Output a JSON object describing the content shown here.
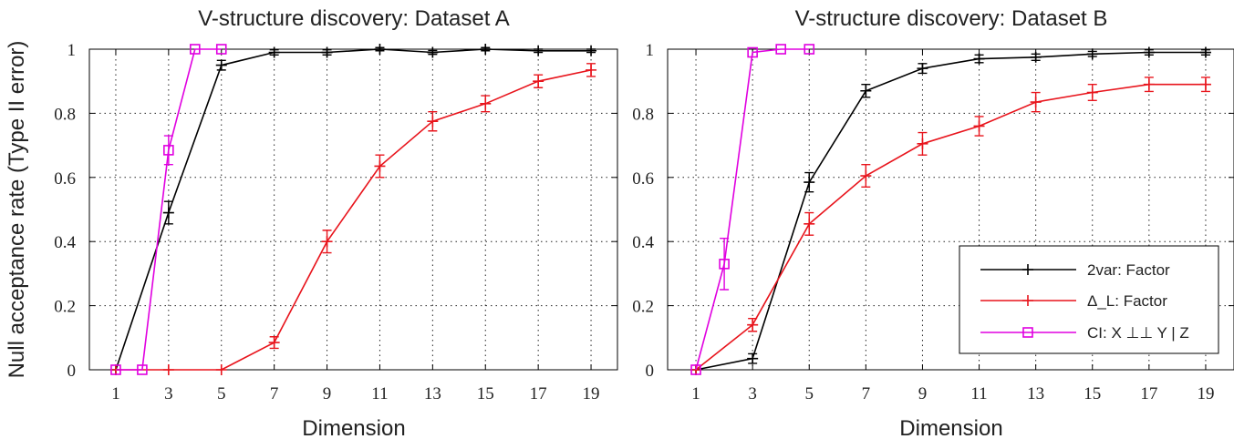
{
  "ylabel": "Null acceptance rate (Type II error)",
  "legend": {
    "items": [
      {
        "label": "2var: Factor",
        "color": "#000000",
        "marker": "plus"
      },
      {
        "label": "Δ_L: Factor",
        "color": "#e8141c",
        "marker": "plus"
      },
      {
        "label": "CI: X ⊥⊥ Y | Z",
        "color": "#e000e0",
        "marker": "square"
      }
    ]
  },
  "chart_data": [
    {
      "type": "line",
      "title": "V-structure discovery: Dataset A",
      "xlabel": "Dimension",
      "ylabel": "Null acceptance rate (Type II error)",
      "xlim": [
        0,
        20
      ],
      "ylim": [
        0,
        1
      ],
      "xticks": [
        1,
        3,
        5,
        7,
        9,
        11,
        13,
        15,
        17,
        19
      ],
      "yticks": [
        0,
        0.2,
        0.4,
        0.6,
        0.8,
        1
      ],
      "yticklabels": [
        "0",
        "0.2",
        "0.4",
        "0.6",
        "0.8",
        "1"
      ],
      "grid": true,
      "series": [
        {
          "name": "2var: Factor",
          "color": "#000000",
          "marker": "plus",
          "x": [
            1,
            3,
            5,
            7,
            9,
            11,
            13,
            15,
            17,
            19
          ],
          "y": [
            0,
            0.49,
            0.95,
            0.99,
            0.99,
            1.0,
            0.99,
            1.0,
            0.995,
            0.995
          ],
          "err": [
            0,
            0.035,
            0.015,
            0.008,
            0.008,
            0.005,
            0.006,
            0.005,
            0.005,
            0.005
          ]
        },
        {
          "name": "Δ_L: Factor",
          "color": "#e8141c",
          "marker": "plus",
          "x": [
            1,
            3,
            5,
            7,
            9,
            11,
            13,
            15,
            17,
            19
          ],
          "y": [
            0,
            0,
            0,
            0.085,
            0.4,
            0.635,
            0.775,
            0.83,
            0.9,
            0.935
          ],
          "err": [
            0,
            0,
            0,
            0.018,
            0.035,
            0.035,
            0.03,
            0.025,
            0.02,
            0.02
          ]
        },
        {
          "name": "CI: X ⊥⊥ Y | Z",
          "color": "#e000e0",
          "marker": "square",
          "x": [
            1,
            2,
            3,
            4,
            5
          ],
          "y": [
            0,
            0,
            0.685,
            1.0,
            1.0
          ],
          "err": [
            0,
            0,
            0.045,
            0,
            0
          ]
        }
      ]
    },
    {
      "type": "line",
      "title": "V-structure discovery: Dataset B",
      "xlabel": "Dimension",
      "ylabel": "",
      "xlim": [
        0,
        20
      ],
      "ylim": [
        0,
        1
      ],
      "xticks": [
        1,
        3,
        5,
        7,
        9,
        11,
        13,
        15,
        17,
        19
      ],
      "yticks": [
        0,
        0.2,
        0.4,
        0.6,
        0.8,
        1
      ],
      "yticklabels": [
        "0",
        "0.2",
        "0.4",
        "0.6",
        "0.8",
        "1"
      ],
      "grid": true,
      "series": [
        {
          "name": "2var: Factor",
          "color": "#000000",
          "marker": "plus",
          "x": [
            1,
            3,
            5,
            7,
            9,
            11,
            13,
            15,
            17,
            19
          ],
          "y": [
            0,
            0.035,
            0.585,
            0.87,
            0.94,
            0.97,
            0.975,
            0.985,
            0.99,
            0.99
          ],
          "err": [
            0,
            0.015,
            0.03,
            0.02,
            0.015,
            0.012,
            0.01,
            0.008,
            0.008,
            0.008
          ]
        },
        {
          "name": "Δ_L: Factor",
          "color": "#e8141c",
          "marker": "plus",
          "x": [
            1,
            3,
            5,
            7,
            9,
            11,
            13,
            15,
            17,
            19
          ],
          "y": [
            0,
            0.14,
            0.455,
            0.605,
            0.705,
            0.76,
            0.835,
            0.865,
            0.89,
            0.89
          ],
          "err": [
            0,
            0.02,
            0.035,
            0.035,
            0.035,
            0.03,
            0.03,
            0.025,
            0.022,
            0.022
          ]
        },
        {
          "name": "CI: X ⊥⊥ Y | Z",
          "color": "#e000e0",
          "marker": "square",
          "x": [
            1,
            2,
            3,
            4,
            5
          ],
          "y": [
            0,
            0.33,
            0.99,
            1.0,
            1.0
          ],
          "err": [
            0,
            0.08,
            0,
            0,
            0
          ]
        }
      ]
    }
  ]
}
